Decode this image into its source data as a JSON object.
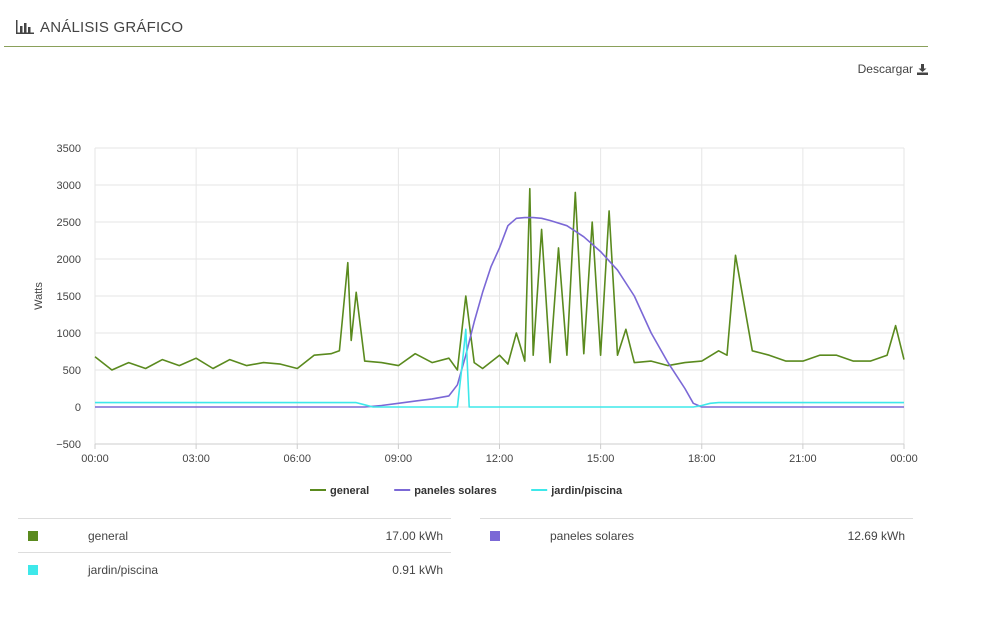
{
  "header": {
    "title": "ANÁLISIS GRÁFICO",
    "icon": "bar-chart-icon"
  },
  "download": {
    "label": "Descargar",
    "icon": "download-icon"
  },
  "chart_data": {
    "type": "line",
    "ylabel": "Watts",
    "ylim": [
      -500,
      3500
    ],
    "yticks": [
      "3500",
      "3000",
      "2500",
      "2000",
      "1500",
      "1000",
      "500",
      "0",
      "−500"
    ],
    "ytick_values": [
      3500,
      3000,
      2500,
      2000,
      1500,
      1000,
      500,
      0,
      -500
    ],
    "xlim": [
      0,
      24
    ],
    "xticks": [
      "00:00",
      "03:00",
      "06:00",
      "09:00",
      "12:00",
      "15:00",
      "18:00",
      "21:00",
      "00:00"
    ],
    "xtick_values": [
      0,
      3,
      6,
      9,
      12,
      15,
      18,
      21,
      24
    ],
    "grid": true,
    "legend_position": "bottom",
    "series": [
      {
        "name": "general",
        "color": "#5a8a1e",
        "x": [
          0,
          0.5,
          1,
          1.5,
          2,
          2.5,
          3,
          3.5,
          4,
          4.5,
          5,
          5.5,
          6,
          6.5,
          7,
          7.25,
          7.5,
          7.6,
          7.75,
          8,
          8.5,
          9,
          9.5,
          10,
          10.5,
          10.75,
          11,
          11.25,
          11.5,
          12,
          12.25,
          12.5,
          12.75,
          12.9,
          13,
          13.25,
          13.5,
          13.75,
          14,
          14.25,
          14.5,
          14.75,
          15,
          15.25,
          15.5,
          15.75,
          16,
          16.5,
          17,
          17.5,
          18,
          18.5,
          18.75,
          19,
          19.5,
          20,
          20.5,
          21,
          21.5,
          22,
          22.5,
          23,
          23.5,
          23.75,
          24
        ],
        "y": [
          680,
          500,
          600,
          520,
          640,
          560,
          660,
          520,
          640,
          560,
          600,
          580,
          520,
          700,
          720,
          760,
          1950,
          900,
          1550,
          620,
          600,
          560,
          720,
          600,
          660,
          500,
          1500,
          600,
          520,
          700,
          580,
          1000,
          620,
          2950,
          700,
          2400,
          600,
          2150,
          700,
          2900,
          720,
          2500,
          700,
          2650,
          700,
          1050,
          600,
          620,
          560,
          600,
          620,
          760,
          700,
          2050,
          760,
          700,
          620,
          620,
          700,
          700,
          620,
          620,
          700,
          1100,
          640
        ]
      },
      {
        "name": "paneles solares",
        "color": "#7b68d6",
        "x": [
          0,
          8,
          8.5,
          9,
          9.5,
          10,
          10.5,
          10.75,
          11,
          11.25,
          11.5,
          11.75,
          12,
          12.25,
          12.5,
          12.75,
          13,
          13.25,
          13.5,
          14,
          14.5,
          15,
          15.5,
          16,
          16.5,
          17,
          17.5,
          17.75,
          18,
          18.5,
          24
        ],
        "y": [
          0,
          0,
          20,
          50,
          80,
          110,
          150,
          300,
          700,
          1150,
          1550,
          1900,
          2150,
          2450,
          2550,
          2560,
          2560,
          2550,
          2520,
          2450,
          2300,
          2100,
          1850,
          1500,
          1000,
          600,
          250,
          50,
          0,
          0,
          0
        ]
      },
      {
        "name": "jardin/piscina",
        "color": "#3ee8ea",
        "x": [
          0,
          7.75,
          8,
          8.25,
          10.75,
          10.9,
          11,
          11.1,
          11.25,
          17.75,
          18,
          18.25,
          18.5,
          24
        ],
        "y": [
          60,
          60,
          30,
          0,
          0,
          600,
          1050,
          0,
          0,
          0,
          20,
          50,
          60,
          60
        ]
      }
    ]
  },
  "summary": {
    "left": [
      {
        "name": "general",
        "color": "#5a8a1e",
        "value": "17.00 kWh"
      },
      {
        "name": "jardin/piscina",
        "color": "#3ee8ea",
        "value": "0.91 kWh"
      }
    ],
    "right": [
      {
        "name": "paneles solares",
        "color": "#7b68d6",
        "value": "12.69 kWh"
      }
    ]
  }
}
